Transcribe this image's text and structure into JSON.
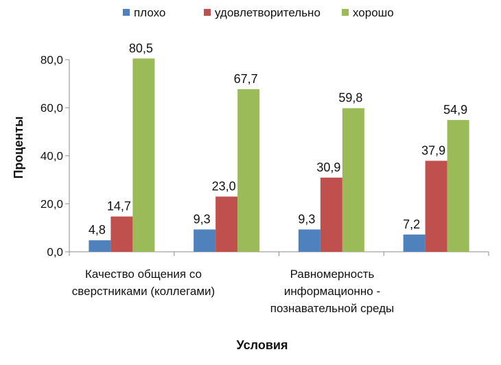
{
  "chart_data": {
    "type": "bar",
    "title": "",
    "xlabel": "Условия",
    "ylabel": "Проценты",
    "ylim": [
      0,
      80
    ],
    "yticks": [
      "0,0",
      "20,0",
      "40,0",
      "60,0",
      "80,0"
    ],
    "categories": [
      [
        "Качество общения со",
        "сверстниками (коллегами)"
      ],
      [],
      [
        "Равномерность",
        "информационно -",
        "познавательной среды"
      ],
      []
    ],
    "series": [
      {
        "name": "плохо",
        "color": "#4f81bd",
        "values": [
          4.8,
          9.3,
          9.3,
          7.2
        ],
        "labels": [
          "4,8",
          "9,3",
          "9,3",
          "7,2"
        ]
      },
      {
        "name": "удовлетворительно",
        "color": "#c0504d",
        "values": [
          14.7,
          23.0,
          30.9,
          37.9
        ],
        "labels": [
          "14,7",
          "23,0",
          "30,9",
          "37,9"
        ]
      },
      {
        "name": "хорошо",
        "color": "#9bbb59",
        "values": [
          80.5,
          67.7,
          59.8,
          54.9
        ],
        "labels": [
          "80,5",
          "67,7",
          "59,8",
          "54,9"
        ]
      }
    ],
    "legend_position": "top",
    "grid": false
  }
}
